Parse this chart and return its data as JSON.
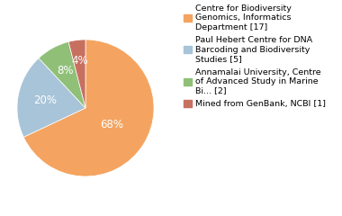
{
  "slices": [
    68,
    20,
    8,
    4
  ],
  "labels": [
    "Centre for Biodiversity\nGenomics, Informatics\nDepartment [17]",
    "Paul Hebert Centre for DNA\nBarcoding and Biodiversity\nStudies [5]",
    "Annamalai University, Centre\nof Advanced Study in Marine\nBi... [2]",
    "Mined from GenBank, NCBI [1]"
  ],
  "colors": [
    "#F4A460",
    "#A8C4D8",
    "#90C078",
    "#C87060"
  ],
  "pct_labels": [
    "68%",
    "20%",
    "8%",
    "4%"
  ],
  "pct_label_colors": [
    "white",
    "white",
    "white",
    "white"
  ],
  "startangle": 90,
  "background_color": "#ffffff",
  "legend_fontsize": 6.8,
  "pct_fontsize": 8.5
}
